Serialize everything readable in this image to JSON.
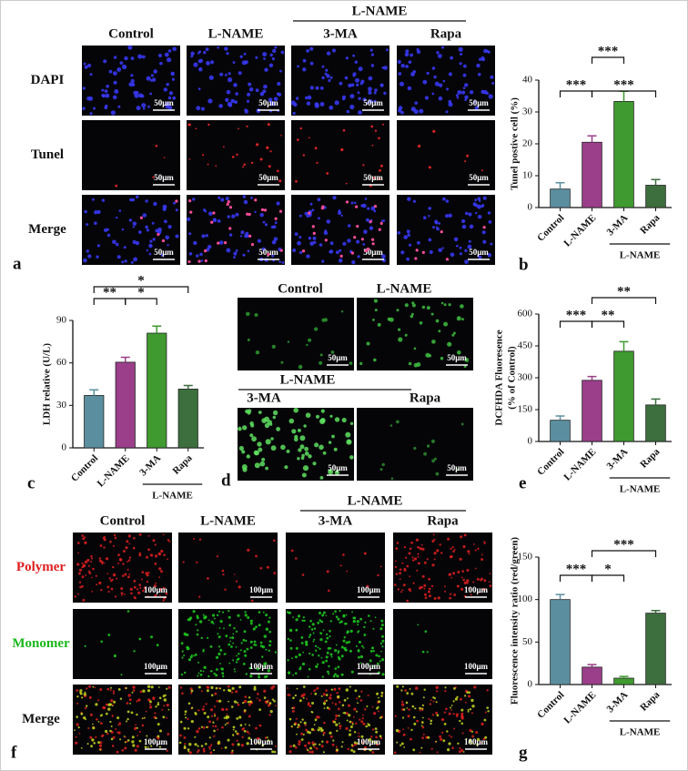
{
  "panels": {
    "a": {
      "label": "a",
      "group": "L-NAME",
      "columns": [
        "Control",
        "L-NAME",
        "3-MA",
        "Rapa"
      ],
      "rows": [
        "DAPI",
        "Tunel",
        "Merge"
      ],
      "scale": "50μm"
    },
    "d": {
      "label": "d",
      "group": "L-NAME",
      "columns": [
        "Control",
        "L-NAME",
        "3-MA",
        "Rapa"
      ],
      "scale": "50μm"
    },
    "f": {
      "label": "f",
      "group": "L-NAME",
      "columns": [
        "Control",
        "L-NAME",
        "3-MA",
        "Rapa"
      ],
      "rows": [
        "Polymer",
        "Monomer",
        "Merge"
      ],
      "scale": "100μm"
    }
  },
  "chart_data": [
    {
      "type": "bar",
      "panel_label": "b",
      "ylabel": [
        "Tunel postive cell (%)"
      ],
      "categories": [
        "Control",
        "L-NAME",
        "3-MA",
        "Rapa"
      ],
      "group_label": "L-NAME",
      "values": [
        5.8,
        20.5,
        33.3,
        7.0
      ],
      "errors": [
        2.0,
        2.0,
        3.2,
        1.8
      ],
      "colors": [
        "#5b8fa0",
        "#9b3f8a",
        "#3f9a2f",
        "#3d6e3e"
      ],
      "ylim": [
        0,
        40
      ],
      "yticks": [
        0,
        10,
        20,
        30,
        40
      ],
      "annotations": [
        "***",
        "***",
        "***"
      ]
    },
    {
      "type": "bar",
      "panel_label": "c",
      "ylabel": [
        "LDH  relative (U/L)"
      ],
      "categories": [
        "Control",
        "L-NAME",
        "3-MA",
        "Rapa"
      ],
      "group_label": "L-NAME",
      "values": [
        37,
        60.5,
        81,
        41.5
      ],
      "errors": [
        4,
        3.5,
        5,
        2.5
      ],
      "colors": [
        "#5b8fa0",
        "#9b3f8a",
        "#3f9a2f",
        "#3d6e3e"
      ],
      "ylim": [
        0,
        90
      ],
      "yticks": [
        0,
        30,
        60,
        90
      ],
      "annotations": [
        "**",
        "*",
        "*"
      ]
    },
    {
      "type": "bar",
      "panel_label": "e",
      "ylabel": [
        "DCFHDA Fluoresence",
        "(% of Control)"
      ],
      "categories": [
        "Control",
        "L-NAME",
        "3-MA",
        "Rapa"
      ],
      "group_label": "L-NAME",
      "values": [
        100,
        288,
        425,
        172
      ],
      "errors": [
        20,
        18,
        45,
        28
      ],
      "colors": [
        "#5b8fa0",
        "#9b3f8a",
        "#3f9a2f",
        "#3d6e3e"
      ],
      "ylim": [
        0,
        600
      ],
      "yticks": [
        0,
        150,
        300,
        450,
        600
      ],
      "annotations": [
        "***",
        "**",
        "**"
      ]
    },
    {
      "type": "bar",
      "panel_label": "g",
      "ylabel": [
        "Fluorescence intensity ratio (red/green)"
      ],
      "categories": [
        "Control",
        "L-NAME",
        "3-MA",
        "Rapa"
      ],
      "group_label": "L-NAME",
      "values": [
        100,
        20.5,
        7.5,
        84
      ],
      "errors": [
        6,
        3,
        2,
        3
      ],
      "colors": [
        "#5b8fa0",
        "#9b3f8a",
        "#3f9a2f",
        "#3d6e3e"
      ],
      "ylim": [
        0,
        150
      ],
      "yticks": [
        0,
        50,
        100,
        150
      ],
      "annotations": [
        "***",
        "*",
        "***"
      ]
    }
  ]
}
